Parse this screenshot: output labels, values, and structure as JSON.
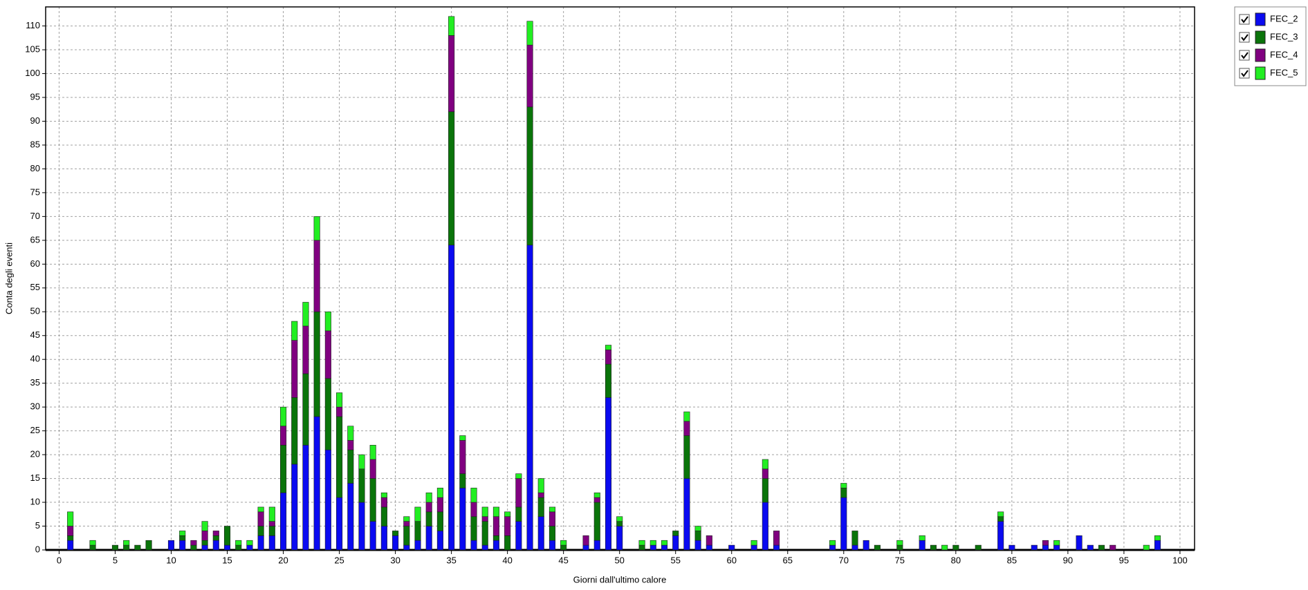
{
  "chart_data": {
    "type": "bar",
    "stacked": true,
    "x_label": "Giorni dall'ultimo calore",
    "y_label": "Conta degli eventi",
    "x": [
      1,
      3,
      5,
      6,
      7,
      8,
      10,
      11,
      12,
      13,
      14,
      15,
      16,
      17,
      18,
      19,
      20,
      21,
      22,
      23,
      24,
      25,
      26,
      27,
      28,
      29,
      30,
      31,
      32,
      33,
      34,
      35,
      36,
      37,
      38,
      39,
      40,
      41,
      42,
      43,
      44,
      45,
      47,
      48,
      49,
      50,
      52,
      53,
      54,
      55,
      56,
      57,
      58,
      60,
      62,
      63,
      64,
      69,
      70,
      71,
      72,
      73,
      75,
      77,
      78,
      79,
      80,
      82,
      84,
      85,
      87,
      88,
      89,
      91,
      92,
      93,
      94,
      97,
      98
    ],
    "series": [
      {
        "name": "FEC_2",
        "color": "#0a0af0",
        "values": [
          2,
          0,
          0,
          0,
          0,
          0,
          2,
          2,
          0,
          1,
          2,
          1,
          0,
          1,
          3,
          3,
          12,
          18,
          22,
          28,
          21,
          11,
          14,
          10,
          6,
          5,
          3,
          1,
          2,
          5,
          4,
          64,
          13,
          2,
          1,
          2,
          0,
          6,
          64,
          7,
          2,
          0,
          1,
          2,
          32,
          5,
          0,
          1,
          1,
          3,
          15,
          2,
          1,
          1,
          1,
          10,
          1,
          1,
          11,
          1,
          2,
          0,
          0,
          2,
          0,
          0,
          0,
          0,
          6,
          1,
          1,
          1,
          1,
          3,
          1,
          0,
          0,
          0,
          2
        ]
      },
      {
        "name": "FEC_3",
        "color": "#0a740a",
        "values": [
          1,
          1,
          1,
          1,
          1,
          2,
          0,
          1,
          1,
          1,
          1,
          4,
          1,
          0,
          2,
          2,
          10,
          14,
          15,
          22,
          15,
          17,
          7,
          7,
          9,
          4,
          1,
          4,
          4,
          3,
          4,
          28,
          3,
          5,
          5,
          1,
          3,
          3,
          29,
          4,
          3,
          1,
          0,
          8,
          7,
          1,
          1,
          0,
          0,
          1,
          9,
          2,
          0,
          0,
          0,
          5,
          0,
          0,
          2,
          3,
          0,
          1,
          1,
          0,
          1,
          0,
          1,
          1,
          1,
          0,
          0,
          0,
          0,
          0,
          0,
          1,
          0,
          0,
          0
        ]
      },
      {
        "name": "FEC_4",
        "color": "#800080",
        "values": [
          2,
          0,
          0,
          0,
          0,
          0,
          0,
          0,
          1,
          2,
          1,
          0,
          0,
          0,
          3,
          1,
          4,
          12,
          10,
          15,
          10,
          2,
          2,
          0,
          4,
          2,
          0,
          1,
          0,
          2,
          3,
          16,
          7,
          3,
          1,
          4,
          4,
          6,
          13,
          1,
          3,
          0,
          2,
          1,
          3,
          0,
          0,
          0,
          0,
          0,
          3,
          0,
          2,
          0,
          0,
          2,
          3,
          0,
          0,
          0,
          0,
          0,
          0,
          0,
          0,
          0,
          0,
          0,
          0,
          0,
          0,
          1,
          0,
          0,
          0,
          0,
          1,
          0,
          0
        ]
      },
      {
        "name": "FEC_5",
        "color": "#22ee22",
        "values": [
          3,
          1,
          0,
          1,
          0,
          0,
          0,
          1,
          0,
          2,
          0,
          0,
          1,
          1,
          1,
          3,
          4,
          4,
          5,
          5,
          4,
          3,
          3,
          3,
          3,
          1,
          0,
          1,
          3,
          2,
          2,
          4,
          1,
          3,
          2,
          2,
          1,
          1,
          5,
          3,
          1,
          1,
          0,
          1,
          1,
          1,
          1,
          1,
          1,
          0,
          2,
          1,
          0,
          0,
          1,
          2,
          0,
          1,
          1,
          0,
          0,
          0,
          1,
          1,
          0,
          1,
          0,
          0,
          1,
          0,
          0,
          0,
          1,
          0,
          0,
          0,
          0,
          1,
          1
        ]
      }
    ],
    "xlim": [
      -1.2,
      101.3
    ],
    "xticks": [
      0,
      5,
      10,
      15,
      20,
      25,
      30,
      35,
      40,
      45,
      50,
      55,
      60,
      65,
      70,
      75,
      80,
      85,
      90,
      95,
      100
    ],
    "ylim": [
      0,
      114
    ],
    "yticks": [
      0,
      5,
      10,
      15,
      20,
      25,
      30,
      35,
      40,
      45,
      50,
      55,
      60,
      65,
      70,
      75,
      80,
      85,
      90,
      95,
      100,
      105,
      110
    ],
    "grid": true,
    "legend": "top-right"
  }
}
